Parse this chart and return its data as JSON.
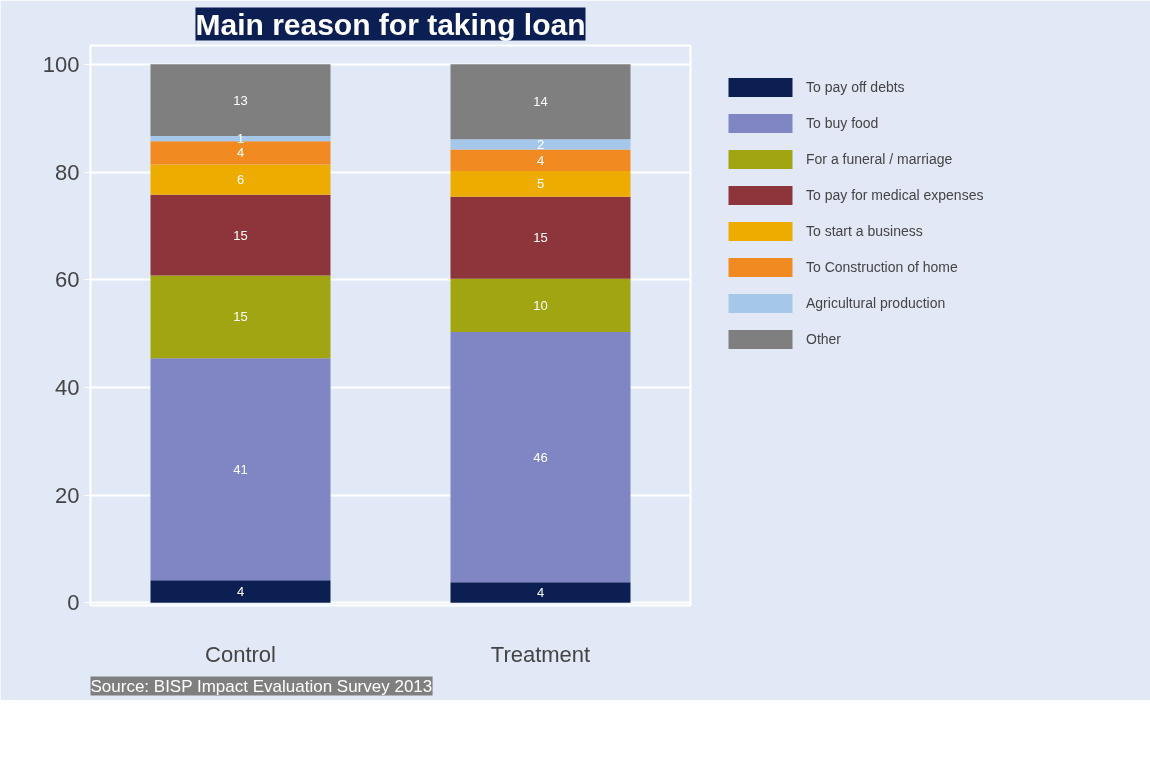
{
  "chart_data": {
    "type": "bar",
    "stacked": true,
    "title": "Main reason for taking loan",
    "categories": [
      "Control",
      "Treatment"
    ],
    "series": [
      {
        "name": "To pay off debts",
        "color": "#0c1f52",
        "values": [
          4.2,
          3.8
        ],
        "value_labels": [
          "4",
          "4"
        ]
      },
      {
        "name": "To buy food",
        "color": "#7f86c3",
        "values": [
          41.2,
          46.5
        ],
        "value_labels": [
          "41",
          "46"
        ]
      },
      {
        "name": "For a funeral / marriage",
        "color": "#a2a512",
        "values": [
          15.4,
          9.9
        ],
        "value_labels": [
          "15",
          "10"
        ]
      },
      {
        "name": "To pay for medical expenses",
        "color": "#8d353b",
        "values": [
          15.0,
          15.2
        ],
        "value_labels": [
          "15",
          "15"
        ]
      },
      {
        "name": "To start a business",
        "color": "#eeab00",
        "values": [
          5.6,
          4.8
        ],
        "value_labels": [
          "6",
          "5"
        ]
      },
      {
        "name": "To Construction of home",
        "color": "#f28a22",
        "values": [
          4.3,
          4.0
        ],
        "value_labels": [
          "4",
          "4"
        ]
      },
      {
        "name": "Agricultural production",
        "color": "#a5c8ea",
        "values": [
          1.0,
          1.9
        ],
        "value_labels": [
          "1",
          "2"
        ]
      },
      {
        "name": "Other",
        "color": "#7f7f7f",
        "values": [
          13.3,
          13.9
        ],
        "value_labels": [
          "13",
          "14"
        ]
      }
    ],
    "ylim": [
      -0.5,
      103.5
    ],
    "yticks": [
      0,
      20,
      40,
      60,
      80,
      100
    ],
    "grid": "y",
    "legend": "right",
    "annotations": [
      "Source: BISP Impact Evaluation Survey 2013"
    ]
  }
}
